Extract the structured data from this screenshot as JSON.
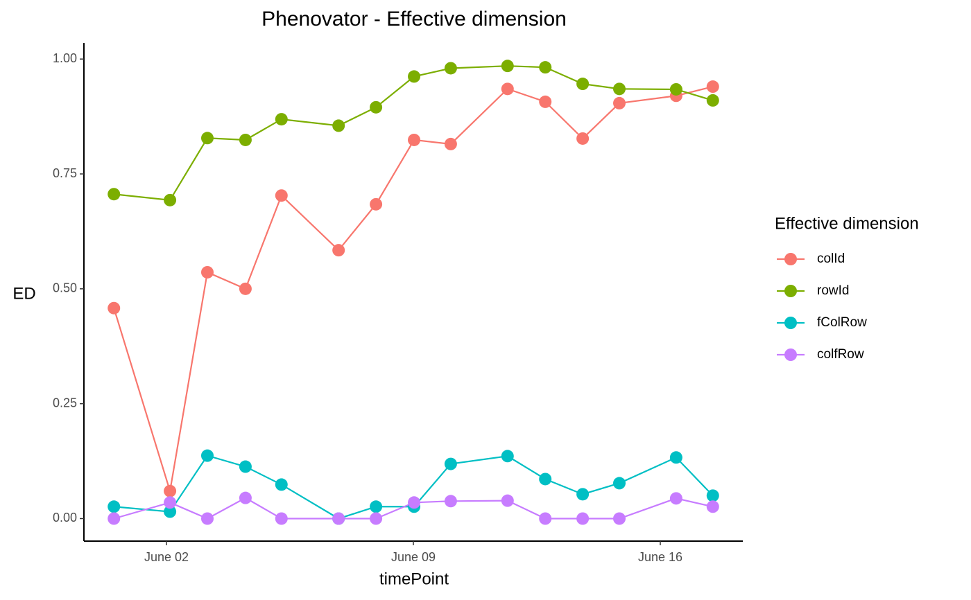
{
  "chart_data": {
    "type": "line",
    "title": "Phenovator - Effective dimension",
    "x_label": "timePoint",
    "y_label": "ED",
    "legend_title": "Effective dimension",
    "legend": "right",
    "x": [
      0.51,
      2.1,
      3.16,
      4.24,
      5.26,
      6.88,
      7.94,
      9.02,
      10.06,
      11.67,
      12.74,
      13.8,
      14.84,
      16.45,
      17.49
    ],
    "series": [
      {
        "name": "colId",
        "color": "#F8766D",
        "values": [
          0.458,
          0.06,
          0.536,
          0.5,
          0.703,
          0.584,
          0.684,
          0.824,
          0.815,
          0.935,
          0.907,
          0.827,
          0.904,
          0.92,
          0.94
        ]
      },
      {
        "name": "rowId",
        "color": "#7CAE00",
        "values": [
          0.706,
          0.693,
          0.828,
          0.824,
          0.869,
          0.855,
          0.895,
          0.962,
          0.98,
          0.985,
          0.982,
          0.946,
          0.935,
          0.934,
          0.91
        ]
      },
      {
        "name": "fColRow",
        "color": "#00BFC4",
        "values": [
          0.026,
          0.015,
          0.137,
          0.113,
          0.074,
          0,
          0.026,
          0.026,
          0.119,
          0.136,
          0.086,
          0.053,
          0.077,
          0.133,
          0.05
        ]
      },
      {
        "name": "colfRow",
        "color": "#C77CFF",
        "values": [
          0,
          0.035,
          0,
          0.045,
          0,
          0,
          0,
          0.035,
          0.038,
          0.039,
          0,
          0,
          0,
          0.044,
          0.026
        ]
      }
    ],
    "xlim": [
      -0.34,
      18.34
    ],
    "xticks": [
      {
        "value": 2,
        "label": "June 02"
      },
      {
        "value": 9,
        "label": "June 09"
      },
      {
        "value": 16,
        "label": "June 16"
      }
    ],
    "ylim": [
      -0.049,
      1.035
    ],
    "yticks": [
      {
        "value": 0,
        "label": "0.00"
      },
      {
        "value": 0.25,
        "label": "0.25"
      },
      {
        "value": 0.5,
        "label": "0.50"
      },
      {
        "value": 0.75,
        "label": "0.75"
      },
      {
        "value": 1,
        "label": "1.00"
      }
    ],
    "grid": false
  }
}
